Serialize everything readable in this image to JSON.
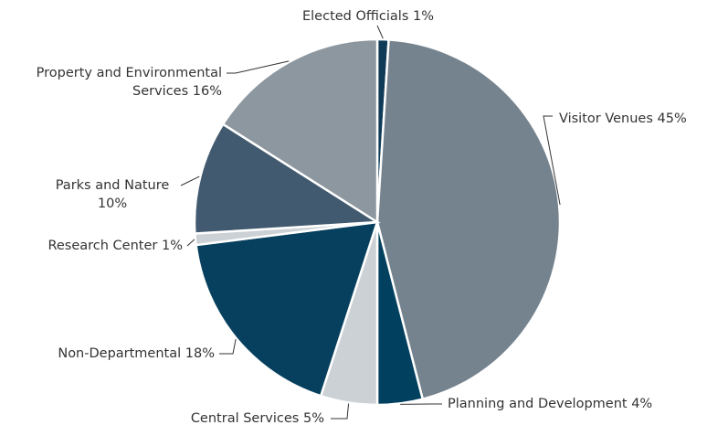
{
  "chart_data": {
    "type": "pie",
    "categories": [
      "Elected Officials",
      "Visitor Venues",
      "Planning and Development",
      "Central Services",
      "Non-Departmental",
      "Research Center",
      "Parks and Nature",
      "Property and Environmental Services"
    ],
    "values": [
      1,
      45,
      4,
      5,
      18,
      1,
      10,
      16
    ],
    "value_labels": [
      "1%",
      "45%",
      "4%",
      "5%",
      "18%",
      "1%",
      "10%",
      "16%"
    ],
    "colors": [
      "#0f3b58",
      "#75838f",
      "#02405f",
      "#ccd1d5",
      "#07405e",
      "#ccd1d5",
      "#425a6f",
      "#8d979f"
    ]
  }
}
